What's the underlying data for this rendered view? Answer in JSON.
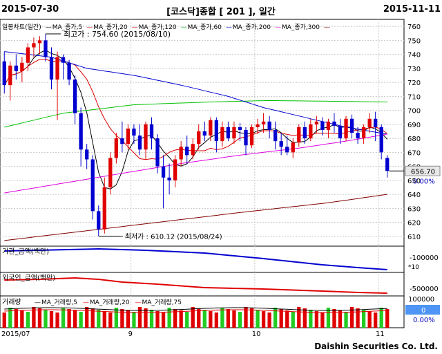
{
  "header": {
    "start_date": "2015-07-30",
    "title": "[코스닥]종합 [ 201 ], 일간",
    "end_date": "2015-11-11"
  },
  "footer": {
    "company": "Daishin Securities Co. Ltd."
  },
  "colors": {
    "up": "#e00000",
    "down": "#0000d0",
    "ma5": "#000000",
    "ma20": "#e00000",
    "ma120": "#e00000",
    "ma60": "#00c000",
    "ma200": "#0000d0",
    "ma300": "#e000e0",
    "line300": "#800000",
    "price_tag_bg": "#e8e8e8",
    "zero_tag_bg": "#4e95f5"
  },
  "chart_data": [
    {
      "type": "candlestick",
      "title": "일봉차트(일간)",
      "legend": [
        "MA_종가,5",
        "MA_종가,20",
        "MA_종가,120",
        "MA_종가,60",
        "MA_종가,200",
        "MA_종가,300"
      ],
      "y_ticks": [
        760,
        750,
        740,
        730,
        720,
        710,
        700,
        690,
        680,
        670,
        660,
        650,
        640,
        630,
        620,
        610
      ],
      "ylim": [
        603,
        765
      ],
      "x_ticks": [
        {
          "label": "2015/07",
          "index": 0
        },
        {
          "label": "9",
          "index": 22
        },
        {
          "label": "10",
          "index": 43
        },
        {
          "label": "11",
          "index": 64
        }
      ],
      "annotations": {
        "high_label": "최고가 : 754.60 (2015/08/10)",
        "high_value": 754.6,
        "high_index": 7,
        "low_label": "최저가 : 610.12 (2015/08/24)",
        "low_value": 610.12,
        "low_index": 16
      },
      "last_price": "656.70",
      "last_price_value": 656.7,
      "last_change": "0.00%",
      "candles": [
        [
          735,
          742,
          712,
          718
        ],
        [
          718,
          735,
          707,
          732
        ],
        [
          732,
          740,
          722,
          728
        ],
        [
          728,
          738,
          720,
          734
        ],
        [
          734,
          748,
          728,
          745
        ],
        [
          745,
          752,
          738,
          748
        ],
        [
          748,
          753,
          740,
          750
        ],
        [
          750,
          754.6,
          735,
          738
        ],
        [
          738,
          745,
          715,
          722
        ],
        [
          722,
          742,
          693,
          738
        ],
        [
          738,
          740,
          722,
          734
        ],
        [
          734,
          736,
          718,
          722
        ],
        [
          722,
          725,
          690,
          698
        ],
        [
          698,
          702,
          660,
          672
        ],
        [
          672,
          676,
          658,
          665
        ],
        [
          665,
          668,
          622,
          628
        ],
        [
          628,
          632,
          610.12,
          615
        ],
        [
          615,
          652,
          612,
          645
        ],
        [
          645,
          670,
          640,
          666
        ],
        [
          666,
          684,
          662,
          680
        ],
        [
          680,
          692,
          670,
          676
        ],
        [
          676,
          690,
          672,
          687
        ],
        [
          687,
          690,
          676,
          682
        ],
        [
          682,
          690,
          668,
          672
        ],
        [
          672,
          692,
          665,
          690
        ],
        [
          690,
          695,
          672,
          680
        ],
        [
          680,
          683,
          655,
          660
        ],
        [
          660,
          668,
          630,
          652
        ],
        [
          652,
          662,
          640,
          650
        ],
        [
          650,
          668,
          645,
          665
        ],
        [
          665,
          678,
          660,
          674
        ],
        [
          674,
          682,
          662,
          668
        ],
        [
          668,
          680,
          665,
          676
        ],
        [
          676,
          690,
          672,
          685
        ],
        [
          685,
          692,
          678,
          682
        ],
        [
          682,
          695,
          678,
          693
        ],
        [
          693,
          695,
          670,
          678
        ],
        [
          678,
          692,
          674,
          688
        ],
        [
          688,
          692,
          678,
          680
        ],
        [
          680,
          692,
          676,
          688
        ],
        [
          688,
          691,
          678,
          686
        ],
        [
          686,
          688,
          668,
          675
        ],
        [
          675,
          690,
          673,
          688
        ],
        [
          688,
          694,
          683,
          690
        ],
        [
          690,
          698,
          684,
          692
        ],
        [
          692,
          696,
          680,
          686
        ],
        [
          686,
          692,
          672,
          678
        ],
        [
          678,
          684,
          668,
          674
        ],
        [
          674,
          682,
          668,
          670
        ],
        [
          670,
          680,
          666,
          677
        ],
        [
          677,
          690,
          674,
          688
        ],
        [
          688,
          692,
          676,
          680
        ],
        [
          680,
          694,
          678,
          690
        ],
        [
          690,
          696,
          684,
          692
        ],
        [
          692,
          695,
          682,
          686
        ],
        [
          686,
          694,
          680,
          692
        ],
        [
          692,
          698,
          684,
          689
        ],
        [
          689,
          694,
          676,
          680
        ],
        [
          680,
          696,
          678,
          694
        ],
        [
          694,
          697,
          680,
          684
        ],
        [
          684,
          688,
          676,
          680
        ],
        [
          680,
          690,
          676,
          688
        ],
        [
          688,
          698,
          684,
          694
        ],
        [
          694,
          699,
          678,
          688
        ],
        [
          688,
          690,
          665,
          670
        ],
        [
          666,
          668,
          652,
          656.7
        ]
      ]
    },
    {
      "type": "line",
      "title": "기관_금액(백만)",
      "y_ticks": [
        "-100000"
      ],
      "scale_label": "*10"
    },
    {
      "type": "line",
      "title": "외국인_금액(백만)",
      "y_ticks": [
        "-500000"
      ]
    },
    {
      "type": "bar",
      "title": "거래량",
      "legend": [
        "MA_거래량,5",
        "MA_거래량,20",
        "MA_거래량,75"
      ],
      "y_ticks": [
        "100000",
        "0"
      ],
      "last_value": "0",
      "last_change": "0.00%"
    }
  ]
}
